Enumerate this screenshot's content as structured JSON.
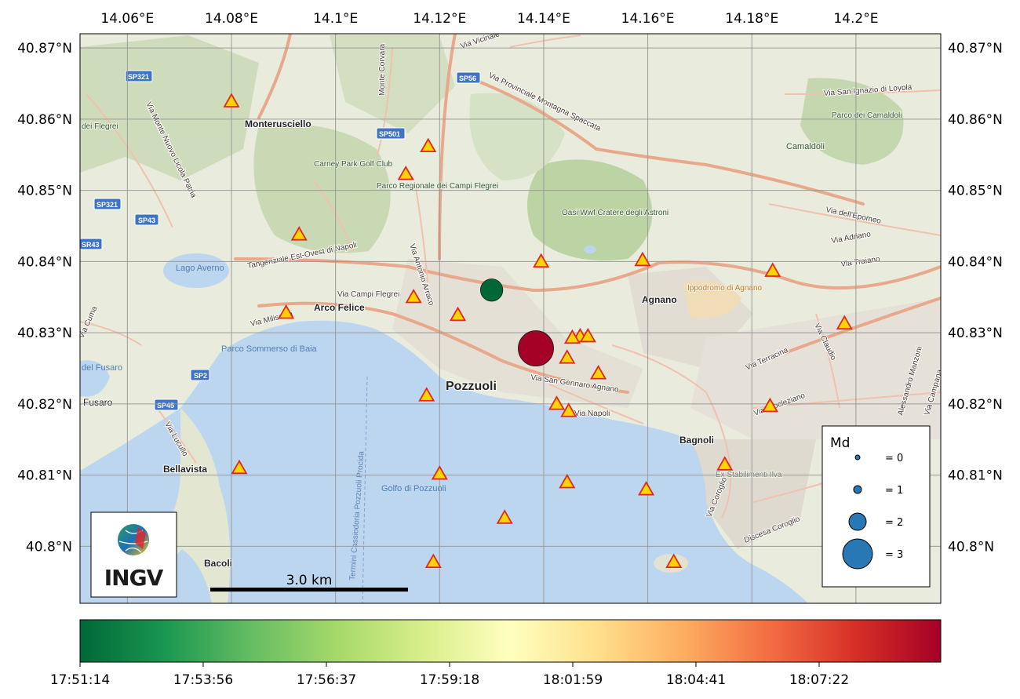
{
  "axes": {
    "lon_ticks": [
      "14.06°E",
      "14.08°E",
      "14.1°E",
      "14.12°E",
      "14.14°E",
      "14.16°E",
      "14.18°E",
      "14.2°E"
    ],
    "lat_ticks": [
      "40.87°N",
      "40.86°N",
      "40.85°N",
      "40.84°N",
      "40.83°N",
      "40.82°N",
      "40.81°N",
      "40.8°N"
    ]
  },
  "map_labels": {
    "places": [
      "Monterusciello",
      "Arco Felice",
      "Pozzuoli",
      "Agnano",
      "Bagnoli",
      "Bellavista",
      "Bacoli",
      "Fusaro",
      "Camaldoli"
    ],
    "areas": [
      "Carney Park Golf Club",
      "Parco Regionale dei Campi Flegrei",
      "Oasi Wwf Cratere degli Astroni",
      "Ippodromo di Agnano",
      "Parco dei Camaldoli",
      "Ex Stabilimenti Ilva",
      "dei Flegrei"
    ],
    "water": [
      "Lago Averno",
      "Parco Sommerso di Baia",
      "Golfo di Pozzuoli",
      "del Fusaro"
    ],
    "roads": [
      "Via Provinciale Montagna Spaccata",
      "Tangenziale Est-Ovest di Napoli",
      "Via Campi Flegrei",
      "Via Miliscola",
      "Via Antonio Arraco",
      "Via San Gennaro Agnano",
      "Via Napoli",
      "Monte Corvara",
      "Via Terracina",
      "Via Claudio",
      "Via Coroglio",
      "Via Cuma",
      "Via Lucullo",
      "Via Diocleziano",
      "Via dell'Epomeo",
      "Via Adriano",
      "Via Traiano",
      "Via San Ignazio di Loyola",
      "Via Vicinale",
      "Alessandro Manzoni",
      "Via Campana",
      "Via Monte Nuovo Licola Patria",
      "Termini Cassiodoria Pozzuoli Procida",
      "Discesa Coroglio"
    ],
    "shields": [
      "SP321",
      "SP56",
      "SP501",
      "SP43",
      "SR43",
      "SP2",
      "SP45",
      "SP321"
    ]
  },
  "scale_bar": {
    "label": "3.0 km"
  },
  "logo": {
    "text": "INGV"
  },
  "legend": {
    "title": "Md",
    "entries": [
      "= 0",
      "= 1",
      "= 2",
      "= 3"
    ]
  },
  "colorbar": {
    "ticks": [
      "17:51:14",
      "17:53:56",
      "17:56:37",
      "17:59:18",
      "18:01:59",
      "18:04:41",
      "18:07:22"
    ],
    "colors": [
      "#006837",
      "#1a9850",
      "#66bd63",
      "#a6d96a",
      "#d9ef8b",
      "#ffffbf",
      "#fee08b",
      "#fdae61",
      "#f46d43",
      "#d73027",
      "#a50026"
    ]
  },
  "events": [
    {
      "lon": 14.13,
      "lat": 40.836,
      "magnitude": 1.8,
      "color": "#006837"
    },
    {
      "lon": 14.1385,
      "lat": 40.8278,
      "magnitude": 2.7,
      "color": "#a50026"
    }
  ],
  "stations": [
    {
      "lon": 14.08,
      "lat": 40.8625
    },
    {
      "lon": 14.1178,
      "lat": 40.8562
    },
    {
      "lon": 14.1135,
      "lat": 40.8523
    },
    {
      "lon": 14.093,
      "lat": 40.8438
    },
    {
      "lon": 14.1395,
      "lat": 40.84
    },
    {
      "lon": 14.159,
      "lat": 40.8402
    },
    {
      "lon": 14.184,
      "lat": 40.8387
    },
    {
      "lon": 14.115,
      "lat": 40.835
    },
    {
      "lon": 14.0905,
      "lat": 40.8328
    },
    {
      "lon": 14.1235,
      "lat": 40.8325
    },
    {
      "lon": 14.147,
      "lat": 40.8295
    },
    {
      "lon": 14.1485,
      "lat": 40.8295
    },
    {
      "lon": 14.1455,
      "lat": 40.8293
    },
    {
      "lon": 14.1978,
      "lat": 40.8313
    },
    {
      "lon": 14.1445,
      "lat": 40.8265
    },
    {
      "lon": 14.1505,
      "lat": 40.8243
    },
    {
      "lon": 14.1175,
      "lat": 40.8212
    },
    {
      "lon": 14.1425,
      "lat": 40.82
    },
    {
      "lon": 14.1448,
      "lat": 40.819
    },
    {
      "lon": 14.1835,
      "lat": 40.8197
    },
    {
      "lon": 14.0815,
      "lat": 40.811
    },
    {
      "lon": 14.12,
      "lat": 40.8102
    },
    {
      "lon": 14.1748,
      "lat": 40.8115
    },
    {
      "lon": 14.1445,
      "lat": 40.809
    },
    {
      "lon": 14.1597,
      "lat": 40.808
    },
    {
      "lon": 14.1325,
      "lat": 40.804
    },
    {
      "lon": 14.1188,
      "lat": 40.7978
    },
    {
      "lon": 14.165,
      "lat": 40.7978
    }
  ]
}
